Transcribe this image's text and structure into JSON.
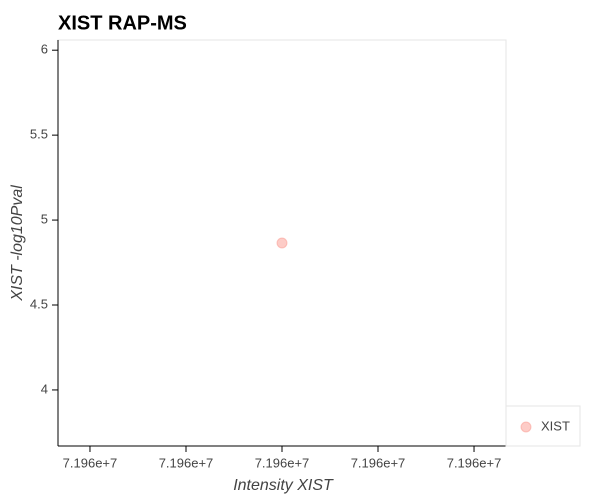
{
  "chart_data": {
    "type": "scatter",
    "title": "XIST RAP-MS",
    "x_label": "Intensity XIST",
    "y_label": "XIST -log10Pval",
    "series": [
      {
        "name": "XIST",
        "color": "#fa8072",
        "alpha": 0.4,
        "x": [
          71960000
        ],
        "values": [
          4.865
        ]
      }
    ],
    "xlim": [
      71959997.667,
      71960002.333
    ],
    "xticks": [
      {
        "value": 71959998,
        "label": "7.196e+7"
      },
      {
        "value": 71959999,
        "label": "7.196e+7"
      },
      {
        "value": 71960000,
        "label": "7.196e+7"
      },
      {
        "value": 71960001,
        "label": "7.196e+7"
      },
      {
        "value": 71960002,
        "label": "7.196e+7"
      }
    ],
    "ylim": [
      3.67,
      6.06
    ],
    "yticks": [
      4,
      4.5,
      5,
      5.5,
      6
    ],
    "legend": "bottom-right-outside"
  }
}
